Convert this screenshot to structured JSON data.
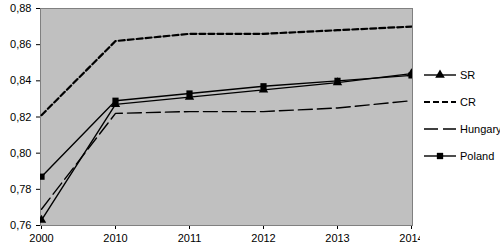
{
  "chart_data": {
    "type": "line",
    "categories": [
      "2000",
      "2010",
      "2011",
      "2012",
      "2013",
      "2014"
    ],
    "series": [
      {
        "name": "SR",
        "color": "#000000",
        "marker": "triangle",
        "line_style": "solid",
        "values": [
          0.763,
          0.827,
          0.831,
          0.835,
          0.839,
          0.844
        ]
      },
      {
        "name": "CR",
        "color": "#000000",
        "line_style": "dashed",
        "values": [
          0.821,
          0.862,
          0.866,
          0.866,
          0.868,
          0.87
        ]
      },
      {
        "name": "Hungary",
        "color": "#000000",
        "line_style": "longdash",
        "values": [
          0.769,
          0.822,
          0.823,
          0.823,
          0.825,
          0.829
        ]
      },
      {
        "name": "Poland",
        "color": "#000000",
        "marker": "square",
        "line_style": "solid",
        "values": [
          0.787,
          0.829,
          0.833,
          0.837,
          0.84,
          0.843
        ]
      }
    ],
    "ylim": [
      0.76,
      0.88
    ],
    "yticks": [
      {
        "value": 0.76,
        "label": "0,76"
      },
      {
        "value": 0.78,
        "label": "0,78"
      },
      {
        "value": 0.8,
        "label": "0,80"
      },
      {
        "value": 0.82,
        "label": "0,82"
      },
      {
        "value": 0.84,
        "label": "0,84"
      },
      {
        "value": 0.86,
        "label": "0,86"
      },
      {
        "value": 0.88,
        "label": "0,88"
      }
    ],
    "grid": false,
    "legend": "right"
  }
}
